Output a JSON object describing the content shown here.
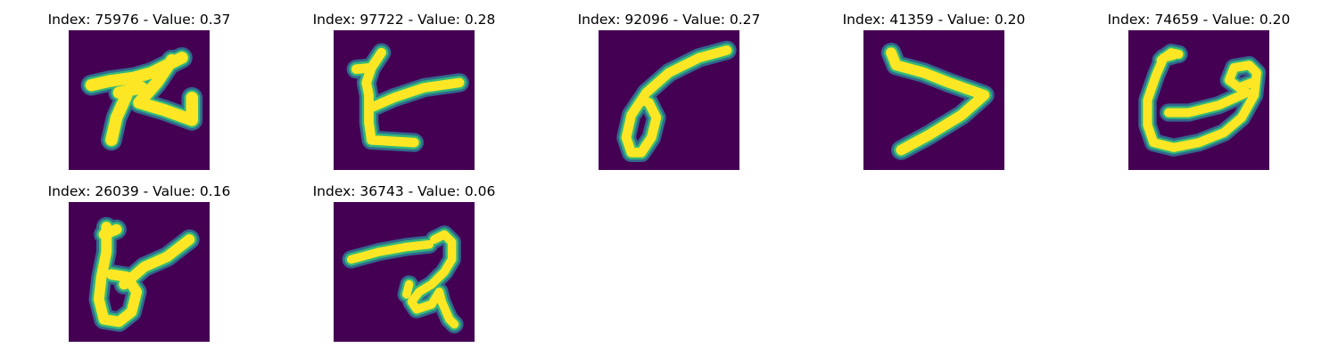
{
  "background_color": "#440154",
  "colormap": [
    "#440154",
    "#31688e",
    "#35b779",
    "#fde725"
  ],
  "panels": [
    {
      "index": "75976",
      "value": "0.37",
      "title": "Index: 75976 - Value: 0.37"
    },
    {
      "index": "97722",
      "value": "0.28",
      "title": "Index: 97722 - Value: 0.28"
    },
    {
      "index": "92096",
      "value": "0.27",
      "title": "Index: 92096 - Value: 0.27"
    },
    {
      "index": "41359",
      "value": "0.20",
      "title": "Index: 41359 - Value: 0.20"
    },
    {
      "index": "74659",
      "value": "0.20",
      "title": "Index: 74659 - Value: 0.20"
    },
    {
      "index": "26039",
      "value": "0.16",
      "title": "Index: 26039 - Value: 0.16"
    },
    {
      "index": "36743",
      "value": "0.06",
      "title": "Index: 36743 - Value: 0.06"
    }
  ]
}
